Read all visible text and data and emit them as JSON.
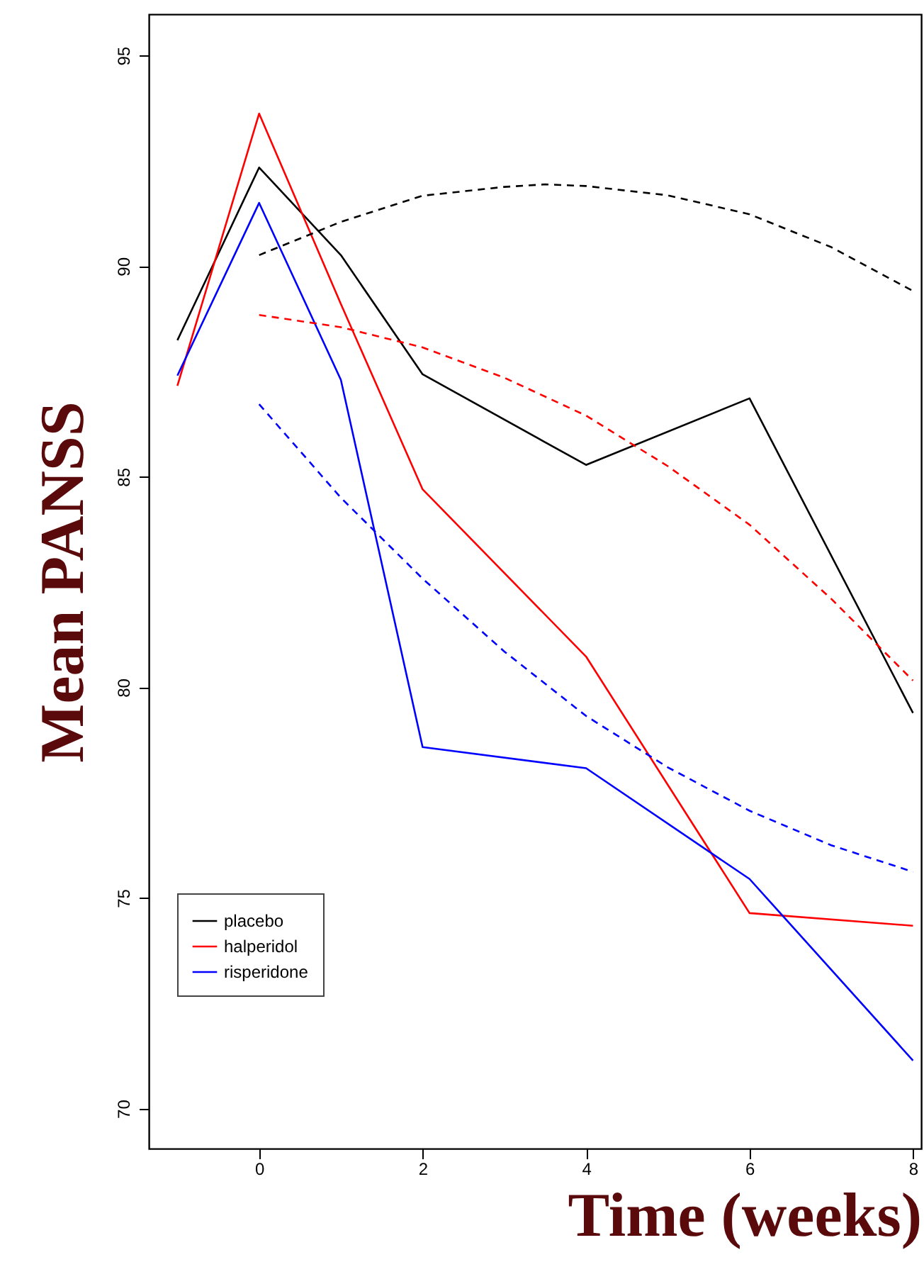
{
  "chart_data": {
    "type": "line",
    "xlabel": "Time (weeks)",
    "ylabel": "Mean PANSS",
    "xlim": [
      -1.35,
      8.1
    ],
    "ylim": [
      69.05,
      95.98
    ],
    "xticks": [
      0,
      2,
      4,
      6,
      8
    ],
    "yticks": [
      70,
      75,
      80,
      85,
      90,
      95
    ],
    "grid": false,
    "legend": "bottom left",
    "marker": "none",
    "series": [
      {
        "name": "placebo",
        "color": "#000000",
        "line_style": "solid",
        "x": [
          -1,
          0,
          1,
          2,
          4,
          6,
          8
        ],
        "values": [
          88.24,
          92.34,
          90.26,
          87.43,
          85.28,
          86.86,
          79.39
        ]
      },
      {
        "name": "halperidol",
        "color": "#ff0000",
        "line_style": "solid",
        "x": [
          -1,
          0,
          1,
          2,
          4,
          6,
          8
        ],
        "values": [
          87.16,
          93.62,
          89.1,
          84.7,
          80.73,
          74.64,
          74.34
        ]
      },
      {
        "name": "risperidone",
        "color": "#0000ff",
        "line_style": "solid",
        "x": [
          -1,
          0,
          1,
          2,
          4,
          6,
          8
        ],
        "values": [
          87.4,
          91.5,
          87.3,
          78.58,
          78.08,
          75.45,
          71.14
        ]
      },
      {
        "color": "#000000",
        "line_style": "dashed",
        "x": [
          0,
          1,
          2,
          3,
          3.5,
          4,
          5,
          6,
          7,
          8
        ],
        "values": [
          90.26,
          91.05,
          91.67,
          91.88,
          91.94,
          91.9,
          91.68,
          91.23,
          90.45,
          89.41
        ]
      },
      {
        "color": "#ff0000",
        "line_style": "dashed",
        "x": [
          0,
          1,
          2,
          3,
          4,
          5,
          6,
          7,
          8
        ],
        "values": [
          88.84,
          88.55,
          88.07,
          87.35,
          86.45,
          85.25,
          83.86,
          82.1,
          80.16
        ]
      },
      {
        "color": "#0000ff",
        "line_style": "dashed",
        "x": [
          0,
          1,
          2,
          3,
          4,
          5,
          6,
          7,
          8
        ],
        "values": [
          86.72,
          84.5,
          82.58,
          80.85,
          79.32,
          78.1,
          77.07,
          76.25,
          75.62
        ]
      }
    ]
  }
}
